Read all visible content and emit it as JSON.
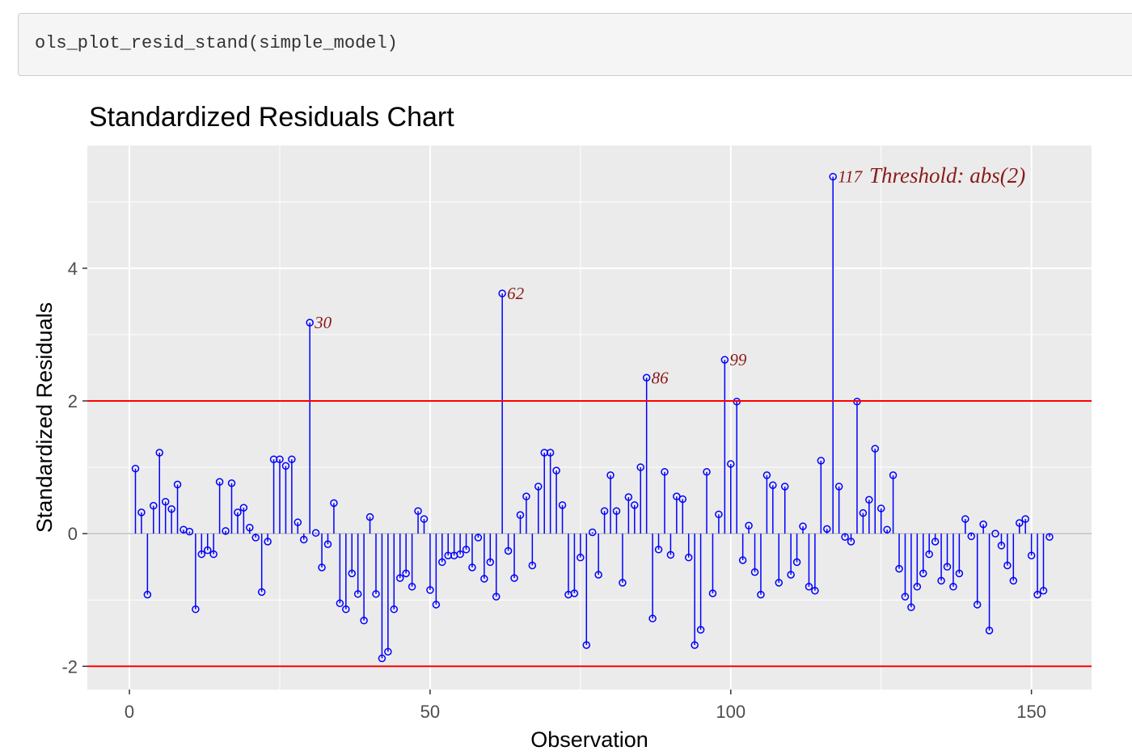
{
  "code": {
    "text": "ols_plot_resid_stand(simple_model)"
  },
  "chart_data": {
    "type": "scatter",
    "style": "lollipop",
    "title": "Standardized Residuals Chart",
    "xlabel": "Observation",
    "ylabel": "Standardized Residuals",
    "xlim": [
      -7,
      160
    ],
    "ylim": [
      -2.35,
      5.85
    ],
    "x_ticks": [
      0,
      50,
      100,
      150
    ],
    "y_ticks": [
      -2,
      0,
      2,
      4
    ],
    "grid": true,
    "threshold": 2,
    "threshold_label": "Threshold: abs(2)",
    "colors": {
      "panel": "#ebebeb",
      "grid": "#ffffff",
      "segment": "#0000ff",
      "point": "#0000ff",
      "threshold": "#ff0000",
      "zero_line": "#bbbbbb",
      "label": "#8b1a1a"
    },
    "y": [
      0.98,
      0.32,
      -0.92,
      0.42,
      1.22,
      0.48,
      0.37,
      0.74,
      0.06,
      0.03,
      -1.14,
      -0.31,
      -0.25,
      -0.31,
      0.78,
      0.04,
      0.76,
      0.32,
      0.39,
      0.09,
      -0.06,
      -0.88,
      -0.12,
      1.12,
      1.12,
      1.02,
      1.12,
      0.17,
      -0.09,
      3.18,
      0.01,
      -0.51,
      -0.16,
      0.46,
      -1.05,
      -1.14,
      -0.6,
      -0.91,
      -1.31,
      0.25,
      -0.91,
      -1.88,
      -1.78,
      -1.14,
      -0.67,
      -0.6,
      -0.8,
      0.34,
      0.22,
      -0.85,
      -1.07,
      -0.43,
      -0.33,
      -0.33,
      -0.31,
      -0.24,
      -0.51,
      -0.06,
      -0.68,
      -0.43,
      -0.95,
      3.62,
      -0.26,
      -0.67,
      0.28,
      0.56,
      -0.48,
      0.71,
      1.22,
      1.22,
      0.95,
      0.43,
      -0.92,
      -0.9,
      -0.36,
      -1.68,
      0.02,
      -0.62,
      0.34,
      0.88,
      0.34,
      -0.74,
      0.55,
      0.43,
      1.0,
      2.35,
      -1.28,
      -0.24,
      0.93,
      -0.32,
      0.56,
      0.52,
      -0.36,
      -1.68,
      -1.45,
      0.93,
      -0.9,
      0.29,
      2.62,
      1.05,
      1.99,
      -0.4,
      0.12,
      -0.58,
      -0.92,
      0.88,
      0.73,
      -0.74,
      0.71,
      -0.62,
      -0.43,
      0.11,
      -0.8,
      -0.86,
      1.1,
      0.07,
      5.38,
      0.71,
      -0.05,
      -0.12,
      1.99,
      0.31,
      0.51,
      1.28,
      0.38,
      0.06,
      0.88,
      -0.53,
      -0.95,
      -1.11,
      -0.8,
      -0.6,
      -0.31,
      -0.12,
      -0.71,
      -0.5,
      -0.8,
      -0.6,
      0.22,
      -0.04,
      -1.07,
      0.14,
      -1.46,
      0.0,
      -0.18,
      -0.48,
      -0.71,
      0.16,
      0.22,
      -0.33,
      -0.92,
      -0.86,
      -0.05
    ],
    "point_labels": [
      {
        "x": 30,
        "text": "30"
      },
      {
        "x": 62,
        "text": "62"
      },
      {
        "x": 86,
        "text": "86"
      },
      {
        "x": 99,
        "text": "99"
      },
      {
        "x": 117,
        "text": "117"
      }
    ]
  }
}
